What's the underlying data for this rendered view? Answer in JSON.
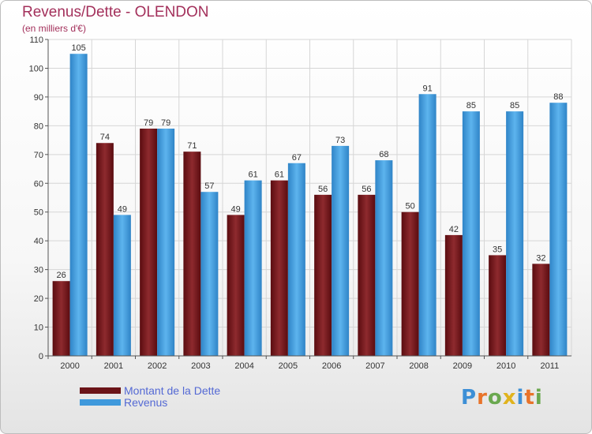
{
  "chart_data": {
    "type": "bar",
    "title": "Revenus/Dette - OLENDON",
    "subtitle": "(en milliers d'€)",
    "categories": [
      "2000",
      "2001",
      "2002",
      "2003",
      "2004",
      "2005",
      "2006",
      "2007",
      "2008",
      "2009",
      "2010",
      "2011"
    ],
    "series": [
      {
        "name": "Montant de la Dette",
        "color": "#7a1c1f",
        "values": [
          26,
          74,
          79,
          71,
          49,
          61,
          56,
          56,
          50,
          42,
          35,
          32
        ]
      },
      {
        "name": "Revenus",
        "color": "#3f99dc",
        "values": [
          105,
          49,
          79,
          57,
          61,
          67,
          73,
          68,
          91,
          85,
          85,
          88
        ]
      }
    ],
    "ylim": [
      0,
      110
    ],
    "yticks": [
      0,
      10,
      20,
      30,
      40,
      50,
      60,
      70,
      80,
      90,
      100,
      110
    ],
    "grid": true,
    "legend_position": "bottom-left"
  },
  "logo": {
    "letters": [
      "P",
      "r",
      "o",
      "x",
      "i",
      "t",
      "i"
    ]
  }
}
